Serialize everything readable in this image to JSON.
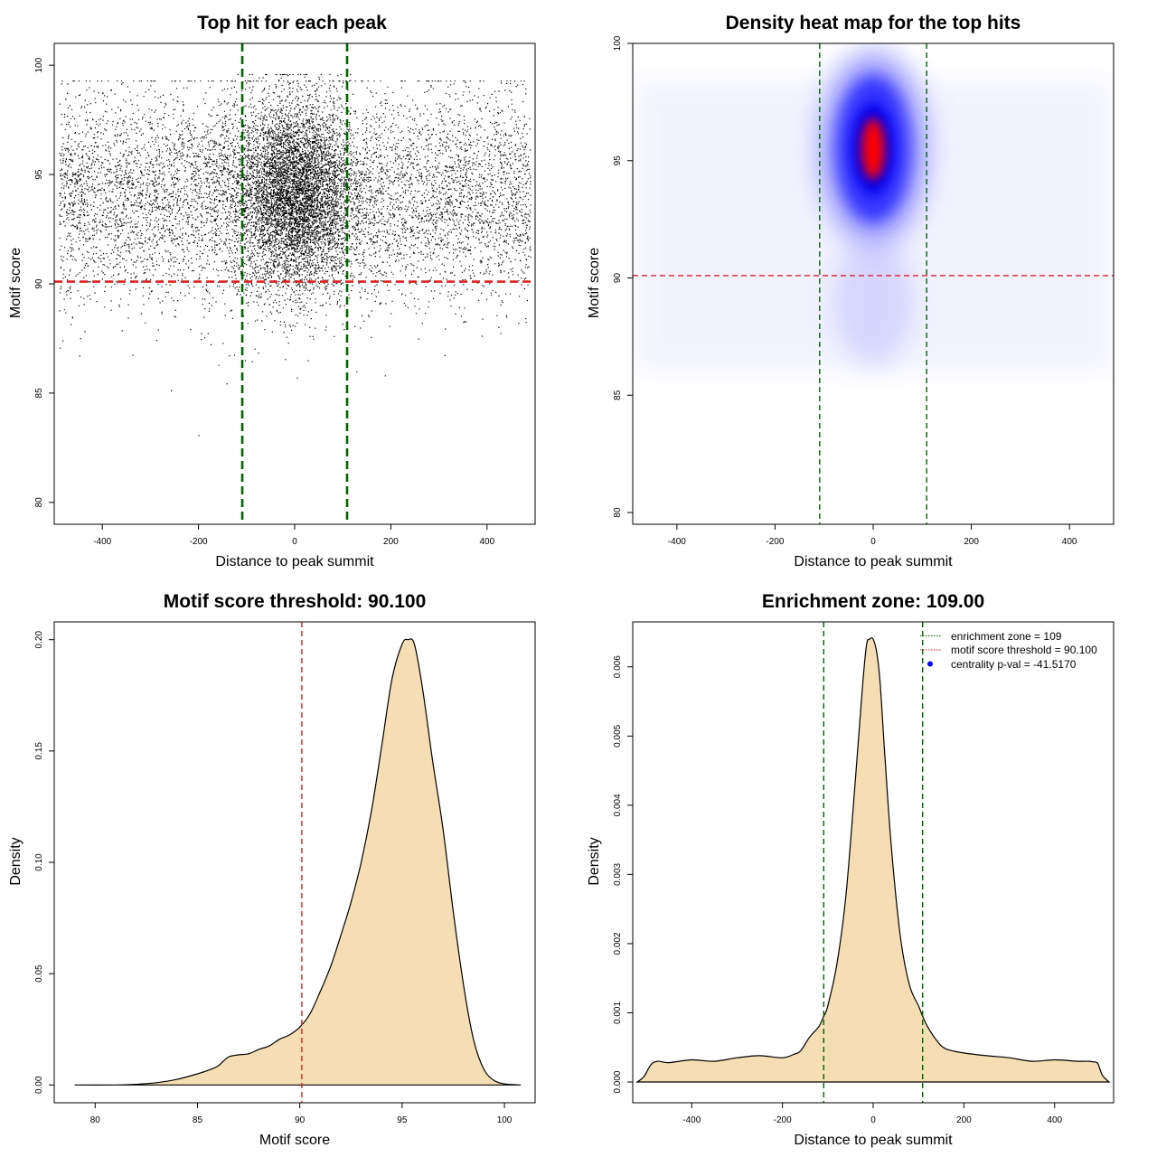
{
  "chart_data": [
    {
      "type": "scatter",
      "title": "Top hit for each peak",
      "xlabel": "Distance to peak summit",
      "ylabel": "Motif score",
      "xlim": [
        -500,
        500
      ],
      "ylim": [
        79,
        101
      ],
      "xticks": [
        -400,
        -200,
        0,
        200,
        400
      ],
      "yticks": [
        80,
        85,
        90,
        95,
        100
      ],
      "point_color": "#000000",
      "point_summary": "about 14000 points; x spread -490..490 with a dense band near 0 (sd ~60), y mostly 83..99.5 centred near 94.5",
      "hlines": [
        {
          "y": 90.1,
          "color": "#dd2222",
          "style": "dashed"
        }
      ],
      "vlines": [
        {
          "x": -109,
          "color": "#006400",
          "style": "dashed"
        },
        {
          "x": 109,
          "color": "#006400",
          "style": "dashed"
        }
      ],
      "grid": false
    },
    {
      "type": "heatmap",
      "title": "Density heat map for the top hits",
      "xlabel": "Distance to peak summit",
      "ylabel": "Motif score",
      "xlim": [
        -490,
        490
      ],
      "ylim": [
        79.5,
        100
      ],
      "xticks": [
        -400,
        -200,
        0,
        200,
        400
      ],
      "yticks": [
        80,
        85,
        90,
        95,
        100
      ],
      "color_scale": [
        "#ffffff",
        "#0000ff",
        "#ff0000"
      ],
      "peak": {
        "x": 0,
        "y": 95.5
      },
      "hlines": [
        {
          "y": 90.1,
          "color": "#dd2222",
          "style": "dashed"
        }
      ],
      "vlines": [
        {
          "x": -109,
          "color": "#006400",
          "style": "dashed"
        },
        {
          "x": 109,
          "color": "#006400",
          "style": "dashed"
        }
      ],
      "grid": false
    },
    {
      "type": "area",
      "title": "Motif score threshold: 90.100",
      "xlabel": "Motif score",
      "ylabel": "Density",
      "xlim": [
        78,
        101.5
      ],
      "ylim": [
        -0.008,
        0.208
      ],
      "xticks": [
        80,
        85,
        90,
        95,
        100
      ],
      "yticks": [
        "0.00",
        "0.05",
        "0.10",
        "0.15",
        "0.20"
      ],
      "fill": "#f5deb3",
      "x": [
        79,
        81,
        82,
        83,
        84,
        85,
        85.5,
        86,
        86.5,
        87,
        87.5,
        88,
        88.5,
        89,
        89.5,
        90,
        90.5,
        91,
        91.5,
        92,
        92.5,
        93,
        93.5,
        94,
        94.5,
        95,
        95.3,
        95.6,
        96,
        96.5,
        97,
        97.5,
        98,
        98.5,
        99,
        99.5,
        100,
        100.5,
        100.8
      ],
      "y": [
        0,
        0,
        0.0003,
        0.001,
        0.0025,
        0.005,
        0.0065,
        0.0085,
        0.0125,
        0.0135,
        0.014,
        0.016,
        0.0175,
        0.0205,
        0.0225,
        0.026,
        0.032,
        0.042,
        0.053,
        0.067,
        0.082,
        0.1,
        0.123,
        0.152,
        0.182,
        0.198,
        0.2,
        0.198,
        0.178,
        0.145,
        0.115,
        0.078,
        0.045,
        0.02,
        0.007,
        0.002,
        0.0005,
        0.0001,
        0
      ],
      "vlines": [
        {
          "x": 90.1,
          "color": "#dd2222",
          "style": "dashed"
        }
      ],
      "grid": false
    },
    {
      "type": "area",
      "title": "Enrichment zone: 109.00",
      "xlabel": "Distance to peak summit",
      "ylabel": "Density",
      "xlim": [
        -530,
        530
      ],
      "ylim": [
        -0.0003,
        0.00665
      ],
      "xticks": [
        -400,
        -200,
        0,
        200,
        400
      ],
      "yticks": [
        "0.000",
        "0.001",
        "0.002",
        "0.003",
        "0.004",
        "0.005",
        "0.006"
      ],
      "fill": "#f5deb3",
      "x": [
        -520,
        -505,
        -490,
        -475,
        -450,
        -400,
        -350,
        -300,
        -250,
        -200,
        -175,
        -160,
        -140,
        -120,
        -109,
        -100,
        -80,
        -60,
        -40,
        -25,
        -15,
        -8,
        0,
        8,
        15,
        25,
        40,
        60,
        80,
        100,
        109,
        120,
        140,
        160,
        200,
        250,
        300,
        350,
        400,
        450,
        475,
        485,
        495,
        505,
        520
      ],
      "y": [
        0,
        8e-05,
        0.00025,
        0.0003,
        0.00028,
        0.00032,
        0.0003,
        0.00035,
        0.00038,
        0.00035,
        0.0004,
        0.00045,
        0.00065,
        0.0008,
        0.00095,
        0.0011,
        0.0017,
        0.0027,
        0.0043,
        0.0056,
        0.0063,
        0.0064,
        0.0064,
        0.0062,
        0.0058,
        0.0048,
        0.0034,
        0.0021,
        0.0014,
        0.0011,
        0.00095,
        0.0008,
        0.0006,
        0.00048,
        0.00042,
        0.00038,
        0.00035,
        0.0003,
        0.00032,
        0.0003,
        0.0003,
        0.00029,
        0.00027,
        0.0001,
        0
      ],
      "vlines": [
        {
          "x": -109,
          "color": "#006400",
          "style": "dashed"
        },
        {
          "x": 109,
          "color": "#006400",
          "style": "dashed"
        }
      ],
      "legend": {
        "placement": "top-right",
        "entries": [
          {
            "label": "enrichment zone = 109",
            "color": "#006400",
            "kind": "dotted-line"
          },
          {
            "label": "motif score threshold = 90.100",
            "color": "#dd2222",
            "kind": "dotted-line"
          },
          {
            "label": "centrality p-val = -41.5170",
            "color": "#0000ff",
            "kind": "dot"
          }
        ]
      },
      "grid": false
    }
  ]
}
